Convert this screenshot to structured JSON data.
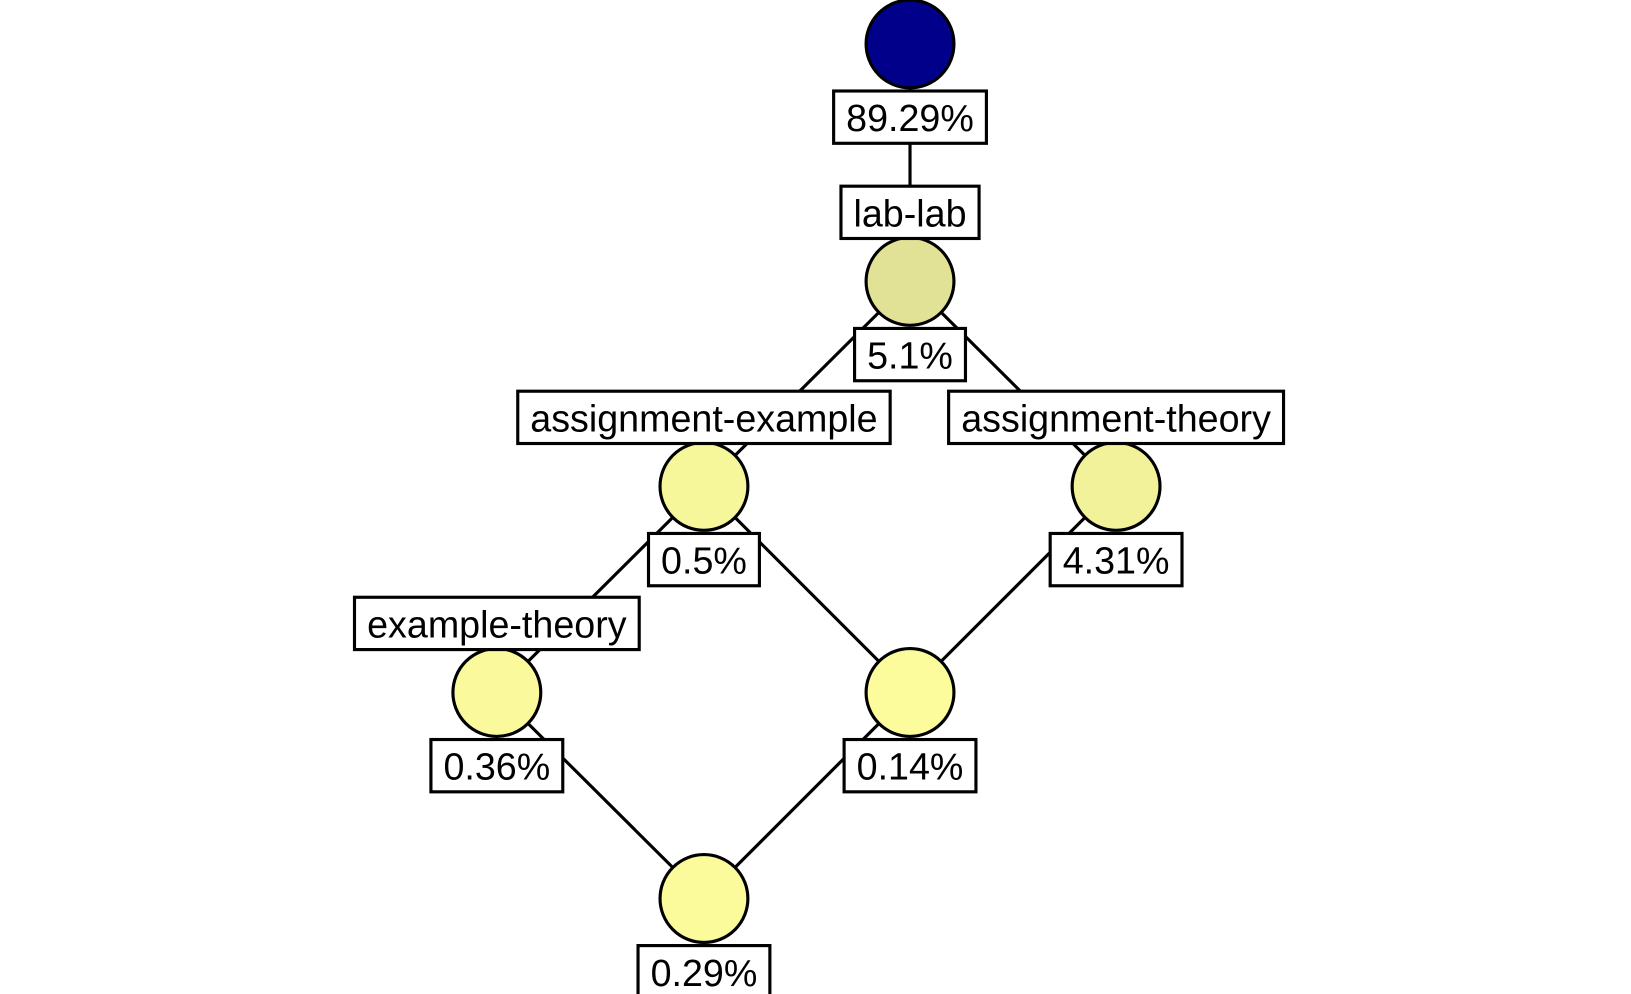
{
  "nodes": [
    {
      "percent": "89.29%",
      "color": "#00008b"
    },
    {
      "label": "lab-lab",
      "percent": "5.1%",
      "color": "#e2e296"
    },
    {
      "label": "assignment-example",
      "percent": "0.5%",
      "color": "#f6f69b"
    },
    {
      "label": "assignment-theory",
      "percent": "4.31%",
      "color": "#f2f29a"
    },
    {
      "label": "example-theory",
      "percent": "0.36%",
      "color": "#fafa9c"
    },
    {
      "percent": "0.14%",
      "color": "#fcfc9c"
    },
    {
      "percent": "0.29%",
      "color": "#fbfb9c"
    }
  ]
}
